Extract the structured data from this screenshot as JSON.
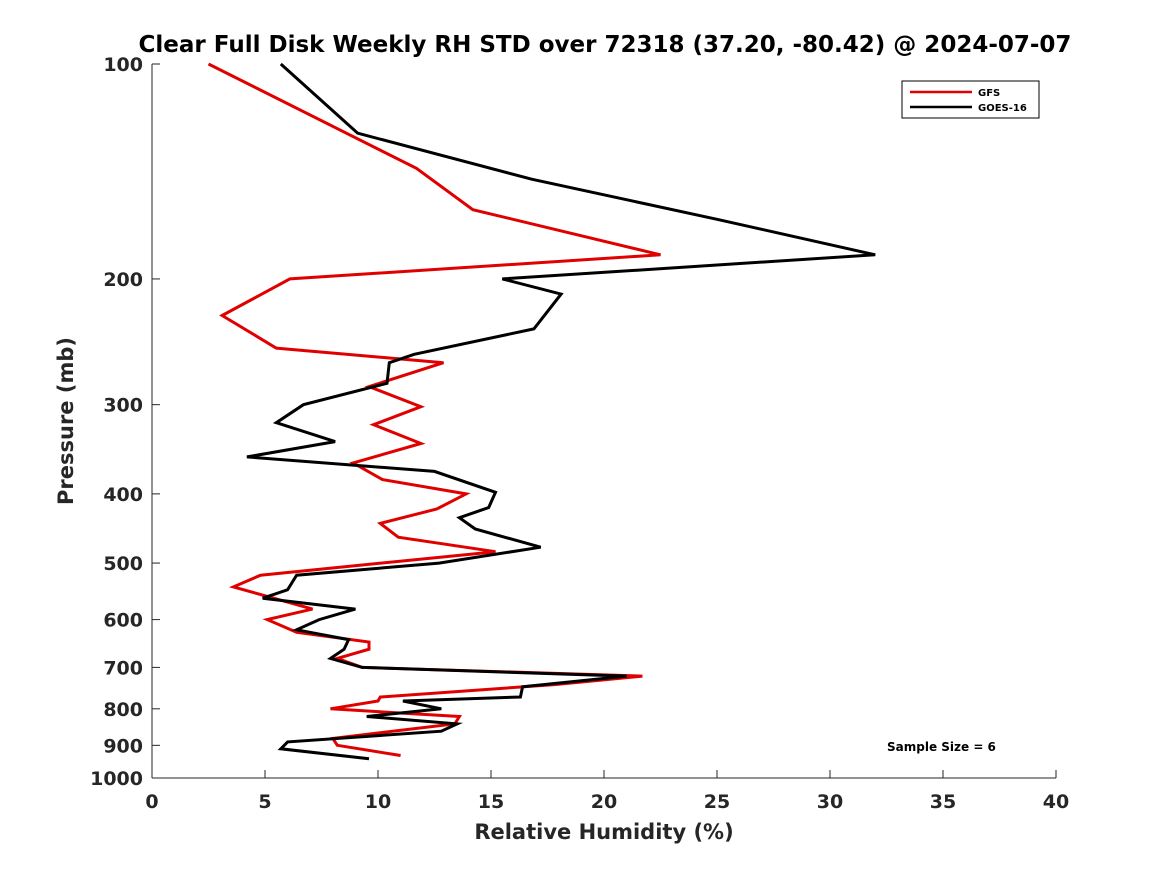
{
  "chart_data": {
    "type": "line",
    "title": "Clear Full Disk Weekly RH STD over 72318 (37.20, -80.42) @ 2024-07-07",
    "xlabel": "Relative Humidity (%)",
    "ylabel": "Pressure (mb)",
    "xlim": [
      0,
      40
    ],
    "ylim": [
      100,
      1000
    ],
    "y_scale": "log",
    "y_reversed": true,
    "grid": false,
    "x_ticks": [
      0,
      5,
      10,
      15,
      20,
      25,
      30,
      35,
      40
    ],
    "y_ticks": [
      100,
      200,
      300,
      400,
      500,
      600,
      700,
      800,
      900,
      1000
    ],
    "legend_position": "top-right",
    "annotation": "Sample Size = 6",
    "series": [
      {
        "name": "GFS",
        "color": "#e00000",
        "x": [
          2.5,
          11.7,
          14.2,
          22.5,
          6.1,
          3.1,
          5.5,
          12.9,
          9.6,
          11.9,
          9.8,
          11.9,
          8.9,
          10.2,
          13.9,
          12.6,
          10.1,
          10.9,
          15.2,
          4.8,
          3.6,
          7.1,
          5.1,
          6.4,
          9.6,
          9.6,
          8.2,
          9.3,
          21.7,
          17.8,
          10.1,
          10.0,
          7.9,
          13.6,
          13.4,
          8.0,
          8.2,
          11.0
        ],
        "y": [
          100,
          140,
          160,
          185,
          200,
          225,
          250,
          262,
          283,
          302,
          320,
          340,
          362,
          382,
          400,
          420,
          440,
          460,
          482,
          520,
          540,
          580,
          600,
          625,
          645,
          660,
          680,
          700,
          720,
          740,
          770,
          780,
          800,
          820,
          840,
          880,
          900,
          930
        ]
      },
      {
        "name": "GOES-16",
        "color": "#000000",
        "x": [
          5.7,
          9.1,
          16.8,
          25.0,
          32.0,
          15.5,
          18.1,
          16.9,
          11.6,
          10.5,
          10.4,
          6.7,
          5.5,
          8.1,
          4.2,
          12.5,
          15.2,
          14.9,
          13.6,
          14.3,
          17.2,
          12.7,
          6.4,
          6.0,
          4.9,
          9.0,
          7.4,
          6.4,
          8.7,
          8.5,
          7.9,
          9.3,
          21.0,
          16.4,
          16.3,
          11.1,
          12.8,
          9.5,
          13.5,
          12.8,
          6.0,
          5.7,
          9.6
        ],
        "y": [
          100,
          125,
          145,
          165,
          185,
          200,
          210,
          235,
          255,
          262,
          280,
          300,
          318,
          338,
          355,
          372,
          398,
          418,
          432,
          448,
          475,
          500,
          520,
          545,
          560,
          580,
          600,
          620,
          640,
          660,
          680,
          700,
          720,
          745,
          770,
          780,
          800,
          820,
          840,
          860,
          890,
          910,
          940
        ]
      }
    ]
  }
}
